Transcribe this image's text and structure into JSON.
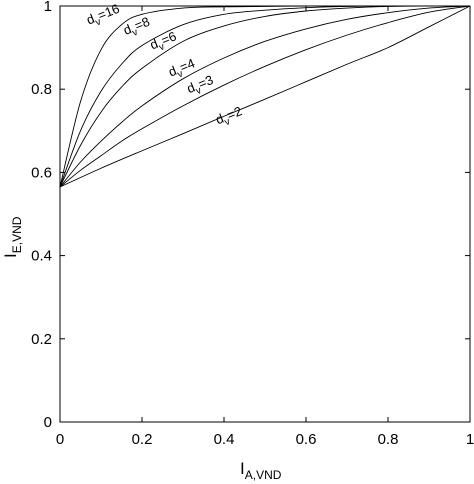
{
  "chart_data": {
    "type": "line",
    "title": "",
    "xlabel": {
      "main": "I",
      "sub": "A,VND"
    },
    "ylabel": {
      "main": "I",
      "sub": "E,VND"
    },
    "xlim": [
      0,
      1
    ],
    "ylim": [
      0,
      1
    ],
    "xticks": [
      "0",
      "0.2",
      "0.4",
      "0.6",
      "0.8",
      "1"
    ],
    "yticks": [
      "0",
      "0.2",
      "0.4",
      "0.6",
      "0.8",
      "1"
    ],
    "grid": false,
    "series": [
      {
        "name": "d_v=16",
        "label_main": "d",
        "label_sub": "v",
        "label_value": "=16",
        "x": [
          0,
          0.05,
          0.1,
          0.15,
          0.2,
          0.3,
          0.4,
          0.5,
          0.6,
          0.7,
          0.8,
          0.9,
          1.0
        ],
        "y": [
          0.565,
          0.77,
          0.895,
          0.955,
          0.98,
          0.995,
          0.998,
          0.999,
          1.0,
          1.0,
          1.0,
          1.0,
          1.0
        ]
      },
      {
        "name": "d_v=8",
        "label_main": "d",
        "label_sub": "v",
        "label_value": "=8",
        "x": [
          0,
          0.05,
          0.1,
          0.15,
          0.2,
          0.3,
          0.4,
          0.5,
          0.6,
          0.7,
          0.8,
          0.9,
          1.0
        ],
        "y": [
          0.565,
          0.7,
          0.795,
          0.86,
          0.905,
          0.955,
          0.98,
          0.99,
          0.996,
          0.999,
          1.0,
          1.0,
          1.0
        ]
      },
      {
        "name": "d_v=6",
        "label_main": "d",
        "label_sub": "v",
        "label_value": "=6",
        "x": [
          0,
          0.05,
          0.1,
          0.15,
          0.2,
          0.3,
          0.4,
          0.5,
          0.6,
          0.7,
          0.8,
          0.9,
          1.0
        ],
        "y": [
          0.565,
          0.665,
          0.745,
          0.805,
          0.85,
          0.915,
          0.952,
          0.975,
          0.988,
          0.995,
          0.999,
          1.0,
          1.0
        ]
      },
      {
        "name": "d_v=4",
        "label_main": "d",
        "label_sub": "v",
        "label_value": "=4",
        "x": [
          0,
          0.05,
          0.1,
          0.15,
          0.2,
          0.3,
          0.4,
          0.5,
          0.6,
          0.7,
          0.8,
          0.9,
          1.0
        ],
        "y": [
          0.565,
          0.625,
          0.675,
          0.72,
          0.76,
          0.825,
          0.875,
          0.915,
          0.945,
          0.968,
          0.984,
          0.995,
          1.0
        ]
      },
      {
        "name": "d_v=3",
        "label_main": "d",
        "label_sub": "v",
        "label_value": "=3",
        "x": [
          0,
          0.05,
          0.1,
          0.15,
          0.2,
          0.3,
          0.4,
          0.5,
          0.6,
          0.7,
          0.8,
          0.9,
          1.0
        ],
        "y": [
          0.565,
          0.605,
          0.64,
          0.675,
          0.705,
          0.76,
          0.81,
          0.855,
          0.895,
          0.93,
          0.96,
          0.985,
          1.0
        ]
      },
      {
        "name": "d_v=2",
        "label_main": "d",
        "label_sub": "v",
        "label_value": "=2",
        "x": [
          0,
          0.1,
          0.2,
          0.3,
          0.4,
          0.5,
          0.6,
          0.7,
          0.8,
          0.9,
          1.0
        ],
        "y": [
          0.565,
          0.61,
          0.652,
          0.693,
          0.735,
          0.776,
          0.818,
          0.86,
          0.9,
          0.95,
          1.0
        ]
      }
    ]
  }
}
